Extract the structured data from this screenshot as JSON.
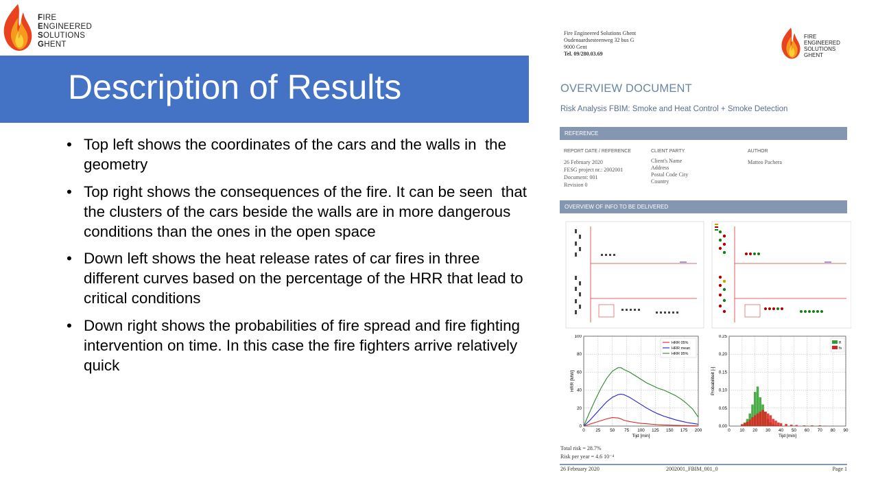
{
  "slide": {
    "logo_lines": [
      {
        "initial": "F",
        "rest": "IRE"
      },
      {
        "initial": "E",
        "rest": "NGINEERED"
      },
      {
        "initial": "S",
        "rest": "OLUTIONS"
      },
      {
        "initial": "G",
        "rest": "HENT"
      }
    ],
    "title": "Description of Results",
    "bullets": [
      "Top left shows the coordinates of the cars and the walls in  the geometry",
      "Top right shows the consequences of the fire. It can be seen  that the clusters of the cars beside the walls are in more dangerous conditions than the ones in the open space",
      "Down left shows the heat release rates of car fires in three different curves based on the percentage of the HRR that lead to critical conditions",
      "Down right shows the probabilities of fire spread and fire fighting intervention on time. In this case the fire fighters arrive relatively quick"
    ],
    "title_band_color": "#4472c4"
  },
  "document": {
    "address": [
      "Fire Engineered Solutions Ghent",
      "Oudenaardsesteenweg 32 bus G",
      "9000 Gent",
      "Tel. 09/280.03.69"
    ],
    "logo_lines": [
      "FIRE",
      "ENGINEERED",
      "SOLUTIONS",
      "GHENT"
    ],
    "heading": "OVERVIEW DOCUMENT",
    "subheading": "Risk Analysis FBIM: Smoke and Heat Control + Smoke Detection",
    "reference_bar": "REFERENCE",
    "ref_headers": {
      "date": "REPORT DATE / REFERENCE",
      "client": "CLIENT PARTY",
      "author": "AUTHOR"
    },
    "ref_date_lines": [
      "26 February 2020",
      "FESG project nr.: 2002001",
      "Document: 001",
      "Revision 0"
    ],
    "ref_client_lines": [
      "Client's Name",
      "Address",
      "Postal Code City",
      "Country"
    ],
    "ref_author": "Matteo Pachera",
    "info_bar": "OVERVIEW OF INFO TO BE DELIVERED",
    "total_risk": "Total risk = 28.7%",
    "risk_per_year": "Risk per year = 4.6 10⁻⁴",
    "footer": {
      "date": "26 February 2020",
      "code": "2002001_FBIM_001_0",
      "page": "Page 1"
    },
    "bar_color": "#8496b0"
  },
  "chart_data": [
    {
      "type": "line",
      "xlabel": "Tijd [min]",
      "ylabel": "HRR [MW]",
      "xlim": [
        0,
        200
      ],
      "ylim": [
        0,
        100
      ],
      "xticks": [
        0,
        25,
        50,
        75,
        100,
        125,
        150,
        175,
        200
      ],
      "yticks": [
        0,
        20,
        40,
        60,
        80,
        100
      ],
      "grid": true,
      "legend_position": "top-right",
      "x": [
        0,
        10,
        20,
        30,
        40,
        50,
        60,
        65,
        70,
        80,
        90,
        100,
        110,
        120,
        130,
        140,
        150,
        160,
        170,
        180,
        190,
        200
      ],
      "series": [
        {
          "name": "HRR 05%",
          "color": "#d62728",
          "values": [
            0,
            2,
            4,
            6,
            8,
            9.5,
            9,
            8,
            6.5,
            5,
            4,
            3,
            2.5,
            2,
            1.5,
            1.2,
            1,
            0.8,
            0.6,
            0.5,
            0.3,
            0.2
          ]
        },
        {
          "name": "HRR mean",
          "color": "#1f1fd6",
          "values": [
            0,
            6,
            13,
            20,
            27,
            32,
            35,
            35.5,
            35,
            32,
            28,
            24,
            20,
            16.5,
            13.5,
            11,
            9,
            7,
            5.5,
            4,
            3,
            2
          ]
        },
        {
          "name": "HRR 95%",
          "color": "#2a8a2a",
          "values": [
            0,
            15,
            29,
            42,
            53,
            61,
            65,
            65,
            63,
            60,
            56,
            52,
            48,
            45,
            42,
            40,
            37,
            34,
            30,
            25,
            19,
            10
          ]
        }
      ]
    },
    {
      "type": "bar",
      "xlabel": "Tijd [min]",
      "ylabel": "Probabiliteit [-]",
      "xlim": [
        0,
        90
      ],
      "ylim": [
        0,
        0.25
      ],
      "xticks": [
        0,
        10,
        20,
        30,
        40,
        50,
        60,
        70,
        80,
        90
      ],
      "yticks": [
        0.0,
        0.05,
        0.1,
        0.15,
        0.2,
        0.25
      ],
      "grid": true,
      "legend_position": "top-right",
      "x": [
        10,
        12,
        14,
        16,
        18,
        20,
        22,
        24,
        26,
        28,
        30,
        32,
        34,
        36,
        38,
        40,
        44,
        48,
        52,
        58,
        64,
        70,
        74
      ],
      "series": [
        {
          "name": "ff",
          "color": "#2ca02c",
          "values": [
            0.005,
            0.01,
            0.02,
            0.035,
            0.06,
            0.095,
            0.11,
            0.08,
            0.06,
            0.04,
            0.02,
            0.01,
            0.005,
            0.003,
            0.002,
            0.001,
            0,
            0,
            0,
            0,
            0,
            0,
            0
          ]
        },
        {
          "name": "fs",
          "color": "#e02020",
          "values": [
            0.005,
            0.008,
            0.012,
            0.018,
            0.025,
            0.03,
            0.035,
            0.04,
            0.045,
            0.04,
            0.035,
            0.03,
            0.02,
            0.015,
            0.01,
            0.008,
            0.006,
            0.004,
            0.003,
            0.002,
            0.002,
            0.002,
            0.001
          ]
        }
      ]
    }
  ]
}
